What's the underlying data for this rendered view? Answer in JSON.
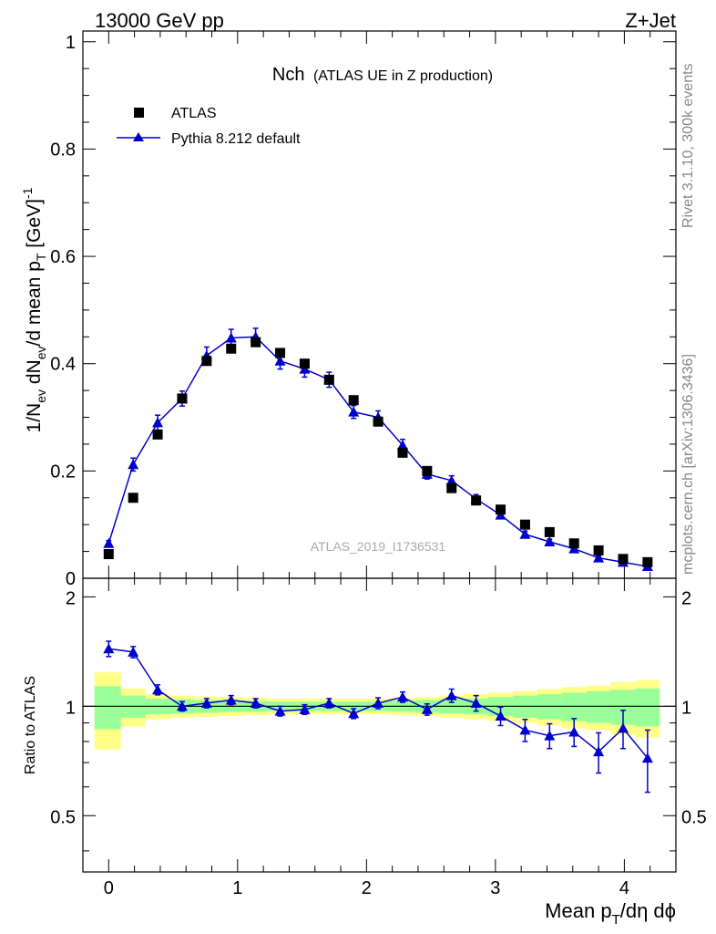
{
  "header": {
    "left": "13000 GeV pp",
    "right": "Z+Jet"
  },
  "title": {
    "main": "Nch",
    "sub": "(ATLAS UE in Z production)"
  },
  "side_labels": {
    "rivet": "Rivet 3.1.10,  300k events",
    "mcplots": "mcplots.cern.ch [arXiv:1306.3436]"
  },
  "watermark": "ATLAS_2019_I1736531",
  "legend": {
    "data_label": "ATLAS",
    "mc_label": "Pythia 8.212 default"
  },
  "axes": {
    "main_ylabel": "1/N_ev dN_ev/d mean p_T [GeV]^-1",
    "ratio_ylabel": "Ratio to ATLAS",
    "xlabel": "Mean p_T/dη dϕ"
  },
  "colors": {
    "data": "#000000",
    "mc": "#0000cc",
    "band_inner": "#99ff99",
    "band_outer": "#ffff88"
  },
  "chart_data": [
    {
      "type": "scatter",
      "title": "Nch (ATLAS UE in Z production)",
      "xlabel": "Mean p_T/dη dϕ",
      "ylabel": "1/N_ev dN_ev/d mean p_T [GeV]^-1",
      "xlim": [
        -0.2,
        4.4
      ],
      "ylim": [
        0,
        1.02
      ],
      "yticks": [
        "0",
        "0.2",
        "0.4",
        "0.6",
        "0.8",
        "1"
      ],
      "ytick_values": [
        0,
        0.2,
        0.4,
        0.6,
        0.8,
        1.0
      ],
      "series": [
        {
          "name": "ATLAS",
          "marker": "square",
          "x": [
            0.0,
            0.19,
            0.38,
            0.57,
            0.76,
            0.95,
            1.14,
            1.33,
            1.52,
            1.71,
            1.9,
            2.09,
            2.28,
            2.47,
            2.66,
            2.85,
            3.04,
            3.23,
            3.42,
            3.61,
            3.8,
            3.99,
            4.18
          ],
          "y": [
            0.045,
            0.15,
            0.268,
            0.335,
            0.405,
            0.428,
            0.44,
            0.42,
            0.4,
            0.37,
            0.332,
            0.292,
            0.234,
            0.2,
            0.168,
            0.145,
            0.128,
            0.1,
            0.086,
            0.065,
            0.052,
            0.036,
            0.03
          ]
        },
        {
          "name": "Pythia 8.212 default",
          "marker": "triangle",
          "x": [
            0.0,
            0.19,
            0.38,
            0.57,
            0.76,
            0.95,
            1.14,
            1.33,
            1.52,
            1.71,
            1.9,
            2.09,
            2.28,
            2.47,
            2.66,
            2.85,
            3.04,
            3.23,
            3.42,
            3.61,
            3.8,
            3.99,
            4.18
          ],
          "y": [
            0.065,
            0.212,
            0.29,
            0.335,
            0.415,
            0.448,
            0.45,
            0.405,
            0.39,
            0.37,
            0.31,
            0.3,
            0.248,
            0.194,
            0.182,
            0.148,
            0.118,
            0.082,
            0.068,
            0.055,
            0.038,
            0.03,
            0.022
          ],
          "yerr": [
            0.005,
            0.012,
            0.014,
            0.014,
            0.016,
            0.016,
            0.016,
            0.015,
            0.015,
            0.014,
            0.012,
            0.012,
            0.011,
            0.009,
            0.009,
            0.008,
            0.007,
            0.006,
            0.005,
            0.005,
            0.004,
            0.004,
            0.003
          ]
        }
      ]
    },
    {
      "type": "scatter",
      "title": "Ratio to ATLAS",
      "xlabel": "Mean p_T/dη dϕ",
      "ylabel": "Ratio to ATLAS",
      "xlim": [
        -0.2,
        4.4
      ],
      "ylim": [
        0.35,
        2.25
      ],
      "xticks": [
        "0",
        "1",
        "2",
        "3",
        "4"
      ],
      "xtick_values": [
        0,
        1,
        2,
        3,
        4
      ],
      "yticks": [
        "0.5",
        "1",
        "2"
      ],
      "ytick_values": [
        0.5,
        1.0,
        2.0
      ],
      "reference_line": 1.0,
      "band_edges": [
        -0.11,
        0.095,
        0.285,
        0.475,
        0.665,
        0.855,
        1.045,
        1.235,
        1.425,
        1.615,
        1.805,
        1.995,
        2.185,
        2.375,
        2.565,
        2.755,
        2.945,
        3.135,
        3.325,
        3.515,
        3.705,
        3.895,
        4.085,
        4.275
      ],
      "band_inner_half": [
        0.135,
        0.07,
        0.05,
        0.045,
        0.04,
        0.035,
        0.035,
        0.03,
        0.03,
        0.03,
        0.03,
        0.03,
        0.035,
        0.04,
        0.045,
        0.05,
        0.06,
        0.07,
        0.08,
        0.09,
        0.1,
        0.11,
        0.12
      ],
      "band_outer_half": [
        0.24,
        0.12,
        0.08,
        0.07,
        0.065,
        0.06,
        0.055,
        0.05,
        0.05,
        0.05,
        0.05,
        0.05,
        0.055,
        0.06,
        0.07,
        0.08,
        0.09,
        0.1,
        0.115,
        0.13,
        0.14,
        0.165,
        0.18
      ],
      "series": [
        {
          "name": "Pythia 8.212 default",
          "marker": "triangle",
          "x": [
            0.0,
            0.19,
            0.38,
            0.57,
            0.76,
            0.95,
            1.14,
            1.33,
            1.52,
            1.71,
            1.9,
            2.09,
            2.28,
            2.47,
            2.66,
            2.85,
            3.04,
            3.23,
            3.42,
            3.61,
            3.8,
            3.99,
            4.18
          ],
          "y": [
            1.44,
            1.41,
            1.11,
            1.0,
            1.02,
            1.04,
            1.02,
            0.97,
            0.98,
            1.02,
            0.955,
            1.02,
            1.06,
            0.98,
            1.07,
            1.02,
            0.94,
            0.86,
            0.83,
            0.85,
            0.75,
            0.87,
            0.72
          ],
          "yerr": [
            0.07,
            0.05,
            0.035,
            0.03,
            0.03,
            0.03,
            0.03,
            0.03,
            0.03,
            0.03,
            0.03,
            0.035,
            0.035,
            0.035,
            0.045,
            0.05,
            0.055,
            0.06,
            0.065,
            0.075,
            0.095,
            0.105,
            0.14
          ]
        }
      ]
    }
  ]
}
